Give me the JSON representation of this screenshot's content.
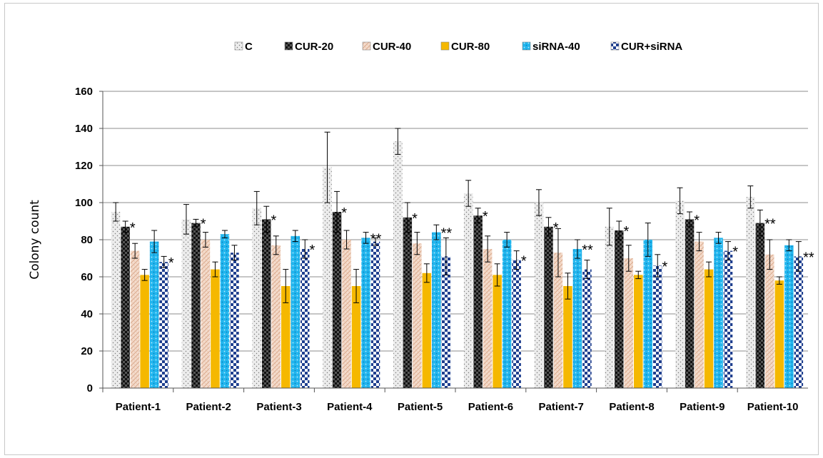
{
  "chart_data": {
    "type": "bar",
    "ylabel": "Colony count",
    "xlabel": "",
    "ylim": [
      0,
      160
    ],
    "yticks": [
      "0",
      "20",
      "40",
      "60",
      "80",
      "100",
      "120",
      "140",
      "160"
    ],
    "grid": true,
    "legend_position": "top",
    "categories": [
      "Patient-1",
      "Patient-2",
      "Patient-3",
      "Patient-4",
      "Patient-5",
      "Patient-6",
      "Patient-7",
      "Patient-8",
      "Patient-9",
      "Patient-10"
    ],
    "series": [
      {
        "name": "C",
        "color": "#e6e6e6",
        "pattern": "dots",
        "values": [
          95,
          91,
          97,
          119,
          133,
          105,
          100,
          87,
          101,
          103
        ],
        "errors": [
          5,
          8,
          9,
          19,
          7,
          7,
          7,
          10,
          7,
          6
        ]
      },
      {
        "name": "CUR-20",
        "color": "#1a1a1a",
        "pattern": "checker-dark",
        "values": [
          87,
          89,
          91,
          95,
          92,
          93,
          87,
          85,
          91,
          89
        ],
        "errors": [
          3,
          2,
          7,
          11,
          8,
          4,
          5,
          5,
          4,
          7
        ]
      },
      {
        "name": "CUR-40",
        "color": "#f2d2c0",
        "pattern": "hatch",
        "values": [
          74,
          80,
          77,
          80,
          78,
          75,
          73,
          70,
          79,
          72
        ],
        "errors": [
          4,
          4,
          5,
          5,
          6,
          7,
          13,
          7,
          5,
          8
        ]
      },
      {
        "name": "CUR-80",
        "color": "#f5b800",
        "pattern": "solid",
        "values": [
          61,
          64,
          55,
          55,
          62,
          61,
          55,
          61,
          64,
          58
        ],
        "errors": [
          3,
          4,
          9,
          9,
          5,
          6,
          7,
          2,
          4,
          2
        ]
      },
      {
        "name": "siRNA-40",
        "color": "#1fb8f0",
        "pattern": "dots-blue",
        "values": [
          79,
          83,
          82,
          81,
          84,
          80,
          75,
          80,
          81,
          77
        ],
        "errors": [
          6,
          2,
          3,
          3,
          4,
          4,
          5,
          9,
          3,
          3
        ]
      },
      {
        "name": "CUR+siRNA",
        "color": "#1f3f8f",
        "pattern": "checker-blue",
        "values": [
          68,
          73,
          75,
          79,
          71,
          69,
          64,
          66,
          74,
          71
        ],
        "errors": [
          3,
          4,
          5,
          2,
          10,
          5,
          5,
          6,
          5,
          8
        ]
      }
    ],
    "significance": {
      "CUR-20": [
        "*",
        "*",
        "*",
        "*",
        "*",
        "*",
        "*",
        "*",
        "*",
        "**"
      ],
      "siRNA-40": [
        "",
        "",
        "",
        "**",
        "**",
        "",
        "**",
        "",
        "",
        ""
      ],
      "CUR+siRNA": [
        "*",
        "",
        "*",
        "",
        "",
        "*",
        "",
        "*",
        "*",
        "**"
      ]
    }
  }
}
